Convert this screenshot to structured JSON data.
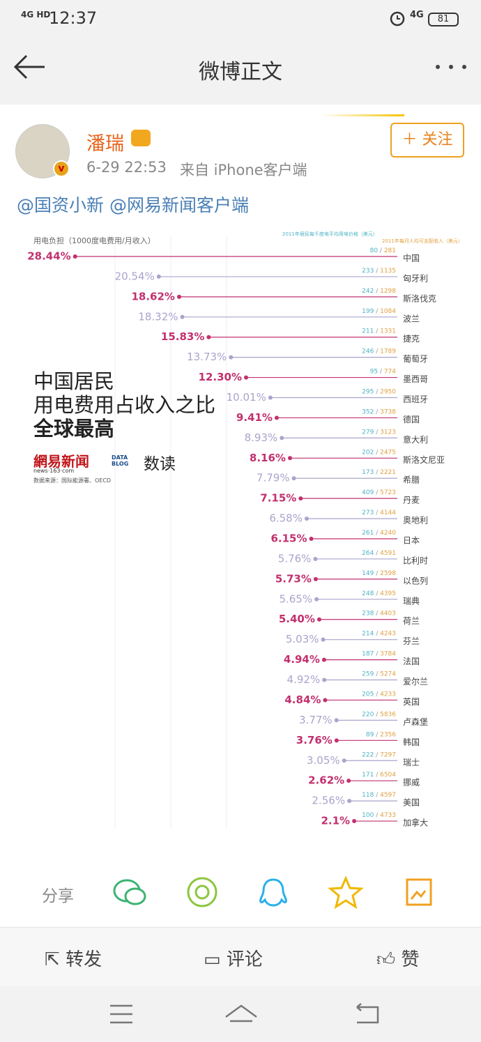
{
  "status_bar": {
    "network": "4G HD",
    "time": "12:37",
    "signal": "4G",
    "battery": "81"
  },
  "nav": {
    "title": "微博正文"
  },
  "post": {
    "author": "潘瑞",
    "time": "6-29 22:53",
    "source": "来自 iPhone客户端",
    "follow": "关注",
    "text": "@国资小新 @网易新闻客户端"
  },
  "overlay": {
    "title_lines": [
      "中国居民",
      "用电费用占收入之比",
      "全球最高"
    ],
    "brand": "網易新闻",
    "brand_url": "news·163·com",
    "blog": "DATA BLOG",
    "blog_name": "数读",
    "source": "数据来源：国际能源署、OECD"
  },
  "chart_data": {
    "type": "lollipop",
    "title": "用电负担（1000度电费用/月收入）",
    "price_header": "2011年居民每千度电平均用电价格（美元）",
    "income_header": "2011年每月人均可支配收入（美元）",
    "categories": [
      "中国",
      "匈牙利",
      "斯洛伐克",
      "波兰",
      "捷克",
      "葡萄牙",
      "墨西哥",
      "西班牙",
      "德国",
      "意大利",
      "斯洛文尼亚",
      "希腊",
      "丹麦",
      "奥地利",
      "日本",
      "比利时",
      "以色列",
      "瑞典",
      "荷兰",
      "芬兰",
      "法国",
      "爱尔兰",
      "英国",
      "卢森堡",
      "韩国",
      "瑞士",
      "挪威",
      "美国",
      "加拿大"
    ],
    "values": [
      28.44,
      20.54,
      18.62,
      18.32,
      15.83,
      13.73,
      12.3,
      10.01,
      9.41,
      8.93,
      8.16,
      7.79,
      7.15,
      6.58,
      6.15,
      5.76,
      5.73,
      5.65,
      5.4,
      5.03,
      4.94,
      4.92,
      4.84,
      3.77,
      3.76,
      3.05,
      2.62,
      2.56,
      2.1
    ],
    "value_labels": [
      "28.44%",
      "20.54%",
      "18.62%",
      "18.32%",
      "15.83%",
      "13.73%",
      "12.30%",
      "10.01%",
      "9.41%",
      "8.93%",
      "8.16%",
      "7.79%",
      "7.15%",
      "6.58%",
      "6.15%",
      "5.76%",
      "5.73%",
      "5.65%",
      "5.40%",
      "5.03%",
      "4.94%",
      "4.92%",
      "4.84%",
      "3.77%",
      "3.76%",
      "3.05%",
      "2.62%",
      "2.56%",
      "2.1%"
    ],
    "prices": [
      80,
      233,
      242,
      199,
      211,
      246,
      95,
      295,
      352,
      279,
      202,
      173,
      409,
      273,
      261,
      264,
      149,
      248,
      238,
      214,
      187,
      259,
      205,
      220,
      89,
      222,
      171,
      118,
      100
    ],
    "incomes": [
      281,
      1135,
      1298,
      1084,
      1331,
      1789,
      774,
      2950,
      3738,
      3123,
      2475,
      2221,
      5723,
      4144,
      4240,
      4591,
      2598,
      4395,
      4403,
      4243,
      3784,
      5274,
      4233,
      5836,
      2356,
      7297,
      6504,
      4597,
      4733
    ],
    "xlim": [
      0,
      30
    ],
    "colors": [
      "#c2306f",
      "#a9a4cc"
    ],
    "price_color": "#4fb3c4",
    "income_color": "#e0a040"
  },
  "share": {
    "label": "分享"
  },
  "actions": {
    "repost": "转发",
    "comment": "评论",
    "like": "赞"
  }
}
